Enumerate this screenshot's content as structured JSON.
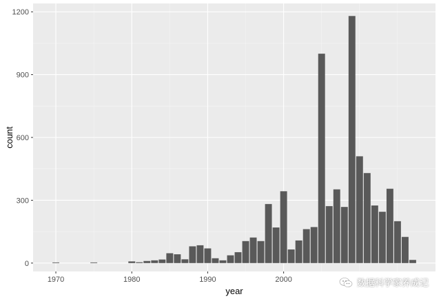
{
  "chart_data": {
    "type": "bar",
    "title": "",
    "xlabel": "year",
    "ylabel": "count",
    "xlim": [
      1967,
      2020
    ],
    "ylim": [
      -40,
      1240
    ],
    "x_ticks": [
      1970,
      1980,
      1990,
      2000
    ],
    "x_tick_labels": [
      "1970",
      "1980",
      "1990",
      "2000"
    ],
    "y_ticks": [
      0,
      300,
      600,
      900,
      1200
    ],
    "y_tick_labels": [
      "0",
      "300",
      "600",
      "900",
      "1200"
    ],
    "grid": true,
    "legend": "none",
    "bar_color": "#595959",
    "panel_color": "#ebebeb",
    "data": [
      {
        "x": 1970,
        "y": 3
      },
      {
        "x": 1975,
        "y": 3
      },
      {
        "x": 1980,
        "y": 8
      },
      {
        "x": 1981,
        "y": 4
      },
      {
        "x": 1982,
        "y": 10
      },
      {
        "x": 1983,
        "y": 13
      },
      {
        "x": 1984,
        "y": 17
      },
      {
        "x": 1985,
        "y": 47
      },
      {
        "x": 1986,
        "y": 42
      },
      {
        "x": 1987,
        "y": 18
      },
      {
        "x": 1988,
        "y": 80
      },
      {
        "x": 1989,
        "y": 85
      },
      {
        "x": 1990,
        "y": 70
      },
      {
        "x": 1991,
        "y": 23
      },
      {
        "x": 1992,
        "y": 13
      },
      {
        "x": 1993,
        "y": 37
      },
      {
        "x": 1994,
        "y": 52
      },
      {
        "x": 1995,
        "y": 105
      },
      {
        "x": 1996,
        "y": 122
      },
      {
        "x": 1997,
        "y": 105
      },
      {
        "x": 1998,
        "y": 282
      },
      {
        "x": 1999,
        "y": 170
      },
      {
        "x": 2000,
        "y": 343
      },
      {
        "x": 2001,
        "y": 65
      },
      {
        "x": 2002,
        "y": 108
      },
      {
        "x": 2003,
        "y": 162
      },
      {
        "x": 2004,
        "y": 172
      },
      {
        "x": 2005,
        "y": 1000
      },
      {
        "x": 2006,
        "y": 272
      },
      {
        "x": 2007,
        "y": 352
      },
      {
        "x": 2008,
        "y": 268
      },
      {
        "x": 2009,
        "y": 1180
      },
      {
        "x": 2010,
        "y": 510
      },
      {
        "x": 2011,
        "y": 430
      },
      {
        "x": 2012,
        "y": 275
      },
      {
        "x": 2013,
        "y": 245
      },
      {
        "x": 2014,
        "y": 355
      },
      {
        "x": 2015,
        "y": 200
      },
      {
        "x": 2016,
        "y": 125
      },
      {
        "x": 2017,
        "y": 15
      }
    ]
  },
  "watermark": {
    "text": "数据科学家养成记",
    "icon": "wechat-icon"
  }
}
